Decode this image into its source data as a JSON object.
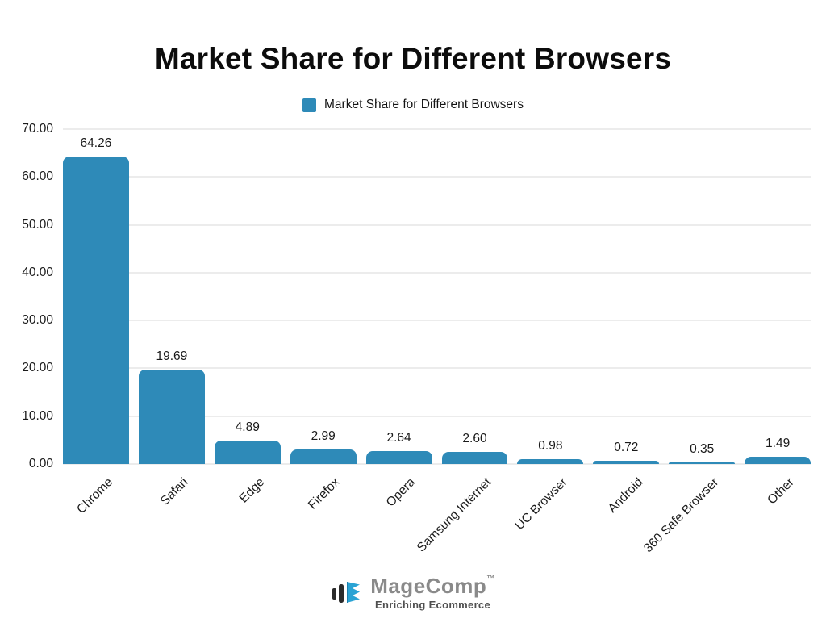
{
  "title": "Market Share for Different Browsers",
  "legend": {
    "label": "Market Share for Different Browsers",
    "color": "#2e8ab8"
  },
  "chart_data": {
    "type": "bar",
    "title": "Market Share for Different Browsers",
    "categories": [
      "Chrome",
      "Safari",
      "Edge",
      "Firefox",
      "Opera",
      "Samsung Internet",
      "UC Browser",
      "Android",
      "360 Safe Browser",
      "Other"
    ],
    "values": [
      64.26,
      19.69,
      4.89,
      2.99,
      2.64,
      2.6,
      0.98,
      0.72,
      0.35,
      1.49
    ],
    "value_labels": [
      "64.26",
      "19.69",
      "4.89",
      "2.99",
      "2.64",
      "2.60",
      "0.98",
      "0.72",
      "0.35",
      "1.49"
    ],
    "yticks": [
      "0.00",
      "10.00",
      "20.00",
      "30.00",
      "40.00",
      "50.00",
      "60.00",
      "70.00"
    ],
    "ylim": [
      0,
      70
    ],
    "ytick_step": 10,
    "xlabel": "",
    "ylabel": "",
    "bar_color": "#2e8ab8",
    "grid": true,
    "legend_position": "top",
    "x_label_rotation_deg": -45
  },
  "footer": {
    "brand": "MageComp",
    "trademark": "TM",
    "tagline": "Enriching Ecommerce"
  }
}
